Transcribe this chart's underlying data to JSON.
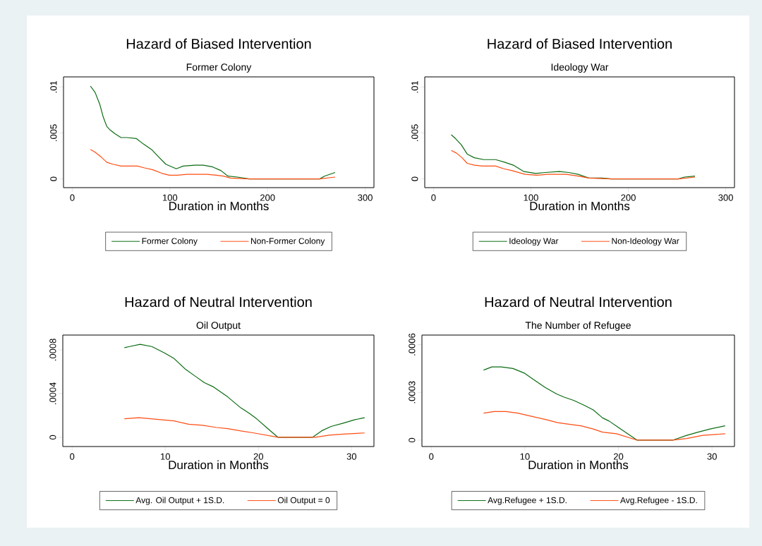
{
  "chart_data": [
    {
      "type": "line",
      "title": "Hazard of Biased Intervention",
      "subtitle": "Former Colony",
      "xlabel": "Duration in Months",
      "legend": "bottom",
      "xlim": [
        -9,
        309
      ],
      "ylim": [
        -0.00095,
        0.0111
      ],
      "xticks": [
        0,
        100,
        200,
        300
      ],
      "yticks": [
        0,
        {
          "value": 0.005,
          "label": ".005"
        },
        {
          "value": 0.01,
          "label": ".01"
        }
      ],
      "series": [
        {
          "name": "Former Colony",
          "color": "#0b6b12",
          "x": [
            18.6,
            23.4,
            28.2,
            31.8,
            35.4,
            39,
            43.9,
            49.9,
            55.9,
            65.5,
            72.8,
            81.2,
            88.4,
            95.7,
            106.5,
            113.7,
            125.8,
            134.2,
            143.9,
            152.3,
            159.5,
            169.2,
            181.2,
            253.5,
            258.3,
            269.2
          ],
          "values": [
            0.0101,
            0.0094,
            0.0081,
            0.0067,
            0.0057,
            0.0053,
            0.0049,
            0.0045,
            0.0045,
            0.0044,
            0.0038,
            0.0032,
            0.0024,
            0.0016,
            0.0011,
            0.0014,
            0.0015,
            0.0015,
            0.0013,
            0.0009,
            0.0003,
            0.0002,
            0,
            0,
            0.0003,
            0.0007
          ]
        },
        {
          "name": "Non-Former Colony",
          "color": "#ff4d12",
          "x": [
            18.6,
            23.4,
            29.4,
            35.4,
            41.4,
            49.9,
            60.7,
            66.7,
            74,
            82.4,
            92,
            99.3,
            107.7,
            117.3,
            125.8,
            137.8,
            147.5,
            154.7,
            161.9,
            181.2,
            253.5,
            269.2
          ],
          "values": [
            0.0032,
            0.0029,
            0.0024,
            0.0018,
            0.0016,
            0.0014,
            0.0014,
            0.0014,
            0.0012,
            0.001,
            0.0006,
            0.0004,
            0.0004,
            0.0005,
            0.0005,
            0.0005,
            0.0004,
            0.0003,
            0.0001,
            0,
            0,
            0.0002
          ]
        }
      ]
    },
    {
      "type": "line",
      "title": "Hazard of Biased Intervention",
      "subtitle": "Ideology War",
      "xlabel": "Duration in Months",
      "legend": "bottom",
      "xlim": [
        -9,
        309
      ],
      "ylim": [
        -0.00095,
        0.0111
      ],
      "xticks": [
        0,
        100,
        200,
        300
      ],
      "yticks": [
        0,
        {
          "value": 0.005,
          "label": ".005"
        },
        {
          "value": 0.01,
          "label": ".01"
        }
      ],
      "series": [
        {
          "name": "Ideology War",
          "color": "#0b6b12",
          "x": [
            18.2,
            22.5,
            28.6,
            34.6,
            41.9,
            51.6,
            63.7,
            73.4,
            81.9,
            92.8,
            104.9,
            114.6,
            129.1,
            138.8,
            148.5,
            159.4,
            172.8,
            182.5,
            251.5,
            257.6,
            268.5
          ],
          "values": [
            0.0048,
            0.0044,
            0.0037,
            0.0027,
            0.0023,
            0.0021,
            0.0021,
            0.0018,
            0.0015,
            0.0008,
            0.0006,
            0.0007,
            0.0008,
            0.0007,
            0.0005,
            0.0001,
            0.0001,
            0,
            0,
            0.0002,
            0.0003
          ]
        },
        {
          "name": "Non-Ideology War",
          "color": "#ff4d12",
          "x": [
            18.2,
            23.7,
            29.3,
            34.6,
            41.9,
            50.4,
            63.7,
            72.2,
            80.7,
            94,
            106.1,
            117,
            136.4,
            148.5,
            159.4,
            182.5,
            251.5,
            268.5
          ],
          "values": [
            0.0031,
            0.0028,
            0.0023,
            0.0017,
            0.0015,
            0.0014,
            0.0014,
            0.0011,
            0.0009,
            0.0005,
            0.0004,
            0.0005,
            0.0005,
            0.0003,
            0.0001,
            0,
            0,
            0.0002
          ]
        }
      ]
    },
    {
      "type": "line",
      "title": "Hazard of Neutral Intervention",
      "subtitle": "Oil Output",
      "xlabel": "Duration in Months",
      "legend": "bottom",
      "xlim": [
        -1,
        32.4
      ],
      "ylim": [
        -8.4e-05,
        0.000935
      ],
      "xticks": [
        0,
        10,
        20,
        30
      ],
      "yticks": [
        0,
        {
          "value": 0.0004,
          "label": ".0004"
        },
        {
          "value": 0.0008,
          "label": ".0008"
        }
      ],
      "series": [
        {
          "name": "Avg. Oil Output + 1S.D.",
          "color": "#0b6b12",
          "x": [
            5.61,
            6.17,
            7.3,
            8.56,
            9.94,
            10.95,
            12.2,
            13.2,
            14.2,
            15.2,
            16.7,
            18.1,
            19,
            19.8,
            21,
            22.1,
            25.8,
            26.8,
            27.8,
            29.1,
            30.3,
            31.4
          ],
          "values": [
            0.00082,
            0.00083,
            0.00085,
            0.00083,
            0.00077,
            0.00072,
            0.00062,
            0.00056,
            0.0005,
            0.00046,
            0.00037,
            0.00027,
            0.00022,
            0.00017,
            8e-05,
            0,
            0,
            6e-05,
            0.0001,
            0.00013,
            0.00016,
            0.00018
          ]
        },
        {
          "name": "Oil Output = 0",
          "color": "#ff4d12",
          "x": [
            5.61,
            7.17,
            8.43,
            9.69,
            10.95,
            12.5,
            14,
            15.5,
            16.7,
            18,
            19.5,
            20.8,
            22.1,
            26.1,
            27.6,
            29.1,
            31.4
          ],
          "values": [
            0.00017,
            0.00018,
            0.00017,
            0.00016,
            0.00015,
            0.00012,
            0.00011,
            9e-05,
            8e-05,
            6e-05,
            4e-05,
            2e-05,
            0,
            0,
            2e-05,
            3e-05,
            4e-05
          ]
        }
      ]
    },
    {
      "type": "line",
      "title": "Hazard of Neutral Intervention",
      "subtitle": "The Number of Refugee",
      "xlabel": "Duration in Months",
      "legend": "bottom",
      "xlim": [
        -1,
        32.4
      ],
      "ylim": [
        -4e-05,
        0.00066
      ],
      "xticks": [
        0,
        10,
        20,
        30
      ],
      "yticks": [
        0,
        {
          "value": 0.0003,
          "label": ".0003"
        },
        {
          "value": 0.0006,
          "label": ".0006"
        }
      ],
      "series": [
        {
          "name": "Avg.Refugee + 1S.D.",
          "color": "#0b6b12",
          "x": [
            5.59,
            6.47,
            7.47,
            8.73,
            9.98,
            11.2,
            12.2,
            13.4,
            14.2,
            15.2,
            16.3,
            17.3,
            18.3,
            19,
            20,
            21,
            22,
            25.8,
            27.3,
            28.5,
            29.8,
            31.4
          ],
          "values": [
            0.00044,
            0.00046,
            0.00046,
            0.00045,
            0.00042,
            0.00037,
            0.00033,
            0.00029,
            0.00027,
            0.00025,
            0.00022,
            0.00019,
            0.00014,
            0.00012,
            8e-05,
            4e-05,
            0,
            0,
            3e-05,
            5e-05,
            7e-05,
            9e-05
          ]
        },
        {
          "name": "Avg.Refugee - 1S.D.",
          "color": "#ff4d12",
          "x": [
            5.59,
            6.72,
            7.98,
            9.23,
            10.7,
            12.2,
            13.5,
            14.7,
            16,
            17.3,
            18.3,
            19.8,
            22,
            25.8,
            27.3,
            29,
            31.4
          ],
          "values": [
            0.00017,
            0.00018,
            0.00018,
            0.00017,
            0.00015,
            0.00013,
            0.00011,
            0.0001,
            9e-05,
            7e-05,
            5e-05,
            4e-05,
            0,
            0,
            1e-05,
            3e-05,
            4e-05
          ]
        }
      ]
    }
  ]
}
